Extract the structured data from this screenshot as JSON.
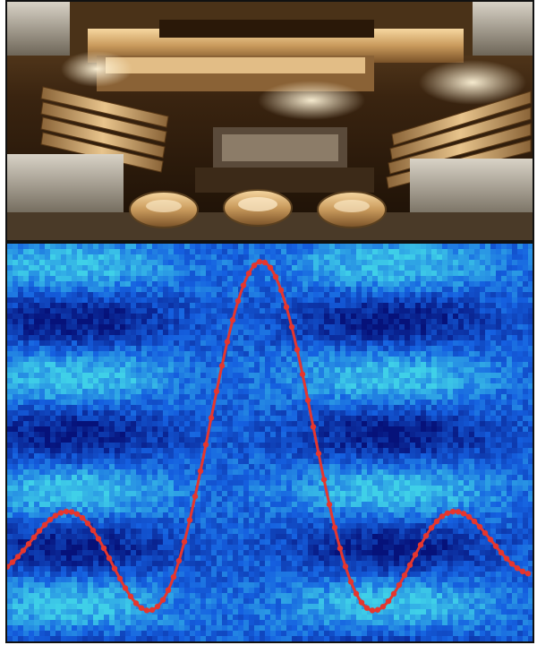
{
  "figure": {
    "top_panel": {
      "content": "photograph"
    },
    "bottom_panel": {
      "content": "heatmap-with-trace"
    }
  },
  "colors": {
    "frame_border": "#111111",
    "heatmap_dark": "#06127a",
    "heatmap_mid": "#1560e0",
    "heatmap_light": "#3fd0e8",
    "trace": "#e5362e",
    "photo_gold": "#d8a86a",
    "photo_dark": "#2a1a08"
  },
  "trace": {
    "markers": "filled circles",
    "shape": "damped sinc-like oscillation with a single central peak"
  }
}
